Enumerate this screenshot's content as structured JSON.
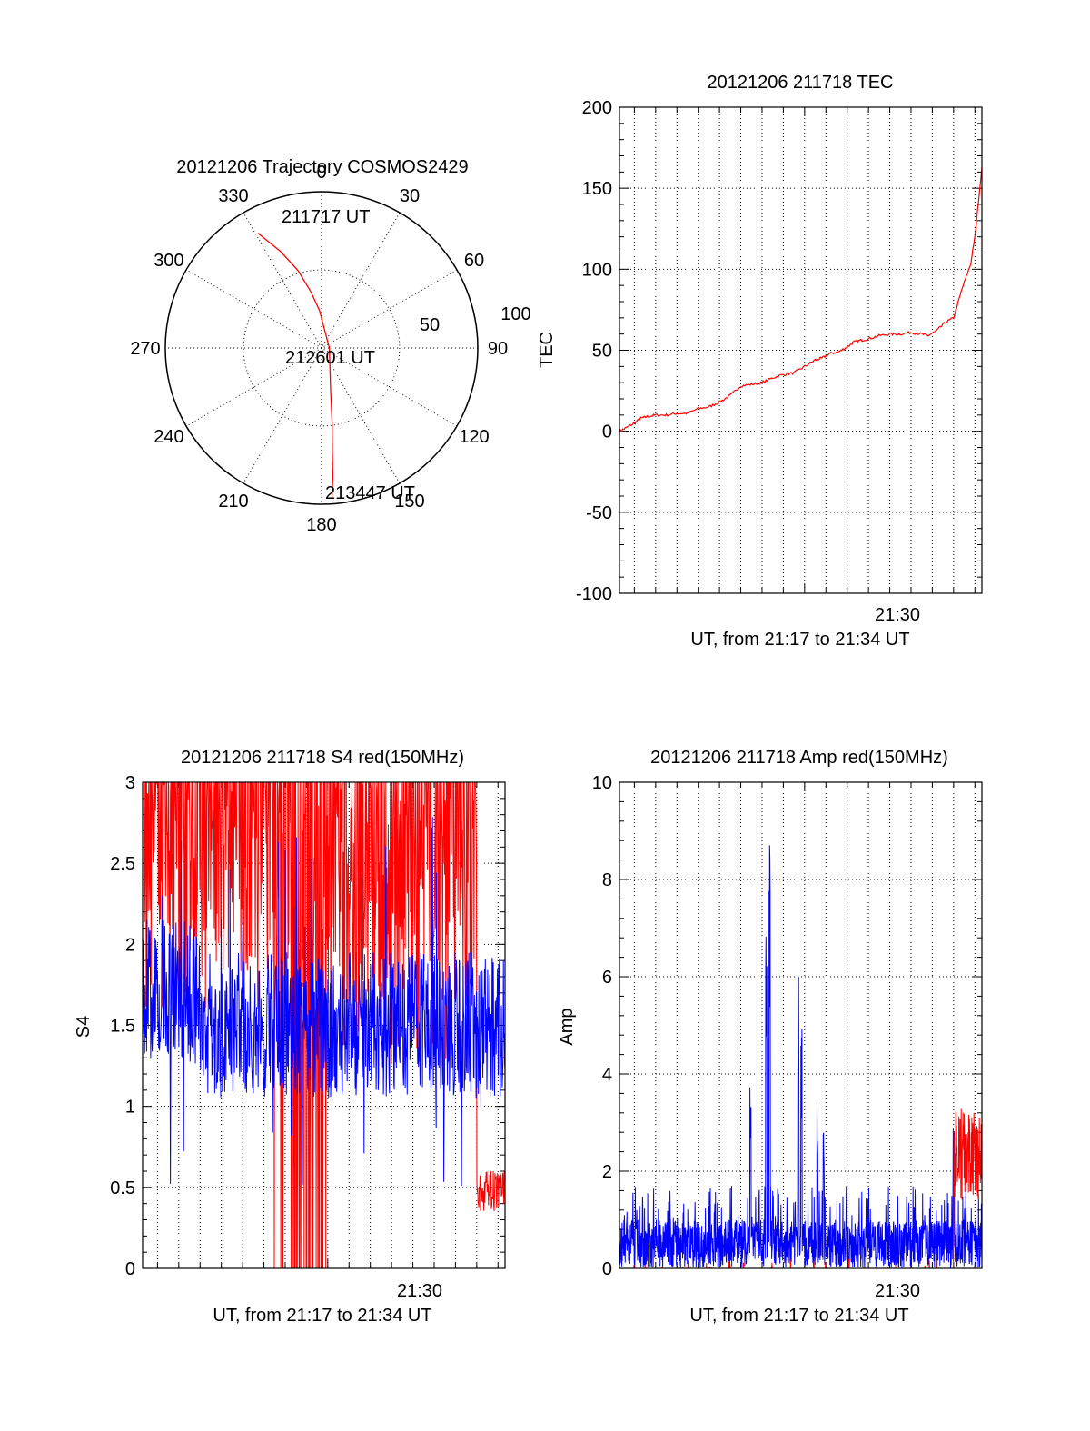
{
  "colors": {
    "red": "#ff0000",
    "blue": "#0000ff",
    "axis": "#000000"
  },
  "chart_data": [
    {
      "type": "polar",
      "title": "20121206 Trajectory COSMOS2429",
      "azimuth_labels": [
        "0",
        "30",
        "60",
        "90",
        "120",
        "150",
        "180",
        "210",
        "240",
        "270",
        "300",
        "330"
      ],
      "radial_labels": [
        "50",
        "100"
      ],
      "radial_range": [
        0,
        100
      ],
      "grid": true,
      "annotations": {
        "start": "211717 UT",
        "mid": "212601 UT",
        "end": "213447 UT"
      },
      "trajectory": {
        "color": "red",
        "az_deg": [
          331,
          337,
          343,
          349,
          357,
          90,
          168,
          172,
          174,
          175,
          176
        ],
        "radius": [
          84,
          67,
          52,
          37,
          24,
          5,
          28,
          49,
          66,
          83,
          96
        ]
      }
    },
    {
      "type": "line",
      "title": "20121206 211718 TEC",
      "xlabel": "UT, from 21:17 to 21:34 UT",
      "ylabel": "TEC",
      "xlim_minutes": [
        21.3,
        38.33
      ],
      "ylim": [
        -100,
        200
      ],
      "xtick_labels": [
        {
          "at": 30,
          "label": "21:30"
        }
      ],
      "ytick_labels": [
        "-100",
        "-50",
        "0",
        "50",
        "100",
        "150",
        "200"
      ],
      "grid": true,
      "series": [
        {
          "color": "red",
          "x": [
            21.3,
            21.6,
            22.0,
            22.3,
            22.6,
            23.0,
            23.5,
            24.0,
            24.5,
            25.0,
            25.5,
            26.0,
            26.5,
            27.0,
            27.5,
            28.0,
            28.5,
            29.0,
            29.5,
            30.0,
            30.5,
            30.8,
            31.2,
            31.6,
            32.0,
            32.3,
            32.6,
            33.0,
            33.5,
            34.0,
            34.5,
            35.0,
            35.5,
            35.8,
            36.2,
            36.6,
            37.0,
            37.4,
            37.8,
            38.0,
            38.33
          ],
          "y": [
            0,
            2,
            5,
            8,
            9,
            10,
            10,
            11,
            11,
            14,
            15,
            18,
            22,
            28,
            29,
            30,
            33,
            35,
            36,
            40,
            44,
            45,
            48,
            49,
            52,
            55,
            56,
            57,
            59,
            60,
            60,
            61,
            60,
            59,
            62,
            67,
            70,
            88,
            103,
            120,
            163
          ]
        }
      ]
    },
    {
      "type": "line",
      "title": "20121206 211718 S4 red(150MHz)",
      "xlabel": "UT, from 21:17 to 21:34 UT",
      "ylabel": "S4",
      "xlim_minutes": [
        21.3,
        38.33
      ],
      "ylim": [
        0,
        3
      ],
      "xtick_labels": [
        {
          "at": 30,
          "label": "21:30"
        }
      ],
      "ytick_labels": [
        "0",
        "0.5",
        "1",
        "1.5",
        "2",
        "2.5",
        "3"
      ],
      "grid": true,
      "series": [
        {
          "color": "red",
          "description_values": "mostly saturated near 3 until ~21:31, spikes to 0 between 21:27 and 21:30, then ~0.45 from 21:32 to 21:34"
        },
        {
          "color": "blue",
          "description_values": "noisy around 1.5 (range ~0.5 to 2.8) across the whole interval"
        }
      ]
    },
    {
      "type": "line",
      "title": "20121206 211718 Amp red(150MHz)",
      "xlabel": "UT, from 21:17 to 21:34 UT",
      "ylabel": "Amp",
      "xlim_minutes": [
        21.3,
        38.33
      ],
      "ylim": [
        0,
        10
      ],
      "xtick_labels": [
        {
          "at": 30,
          "label": "21:30"
        }
      ],
      "ytick_labels": [
        "0",
        "2",
        "4",
        "6",
        "8",
        "10"
      ],
      "grid": true,
      "series": [
        {
          "color": "blue",
          "description_values": "noise floor 0 to ~1.3, peaks of 8.9 near 21:28.3, 6.3 near 21:29.8, 4.3 near 21:27.5"
        },
        {
          "color": "red",
          "description_values": "near 0 until ~21:37, then 1.5 to 3.3 from 21:37 to 21:38.3"
        }
      ]
    }
  ]
}
